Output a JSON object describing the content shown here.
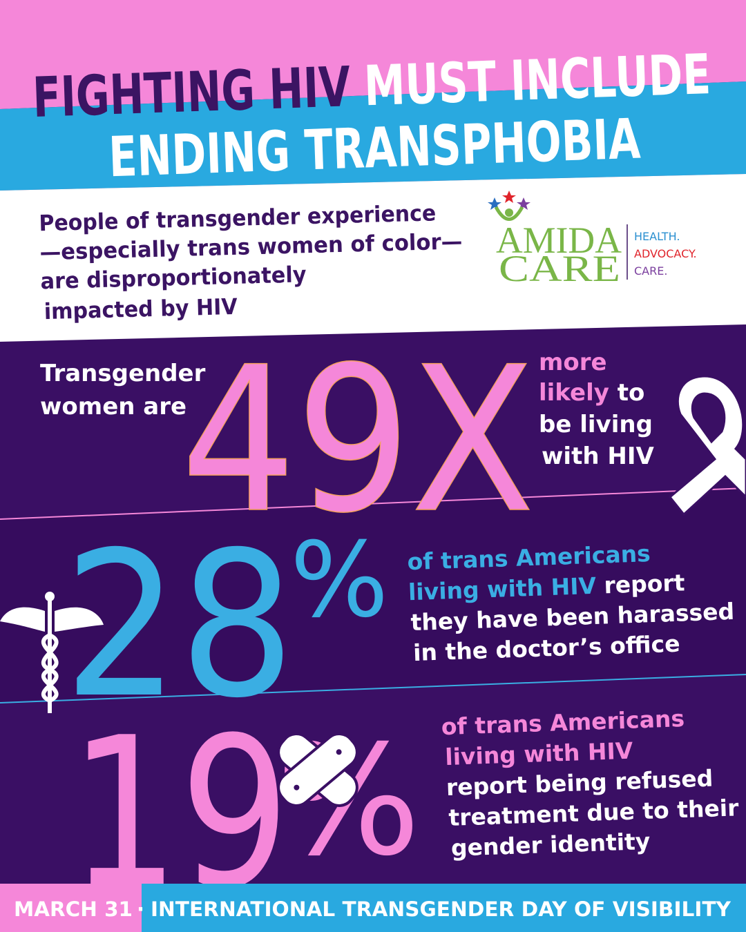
{
  "header": {
    "title_dark": "FIGHTING HIV",
    "title_light": "MUST INCLUDE",
    "title_line2": "ENDING TRANSPHOBIA"
  },
  "intro": {
    "lines": [
      "People of transgender experience",
      "—especially trans women of color—",
      "are disproportionately",
      "impacted by HIV"
    ]
  },
  "logo": {
    "name_line1": "AMIDA",
    "name_line2": "CARE",
    "tags": [
      "HEALTH.",
      "ADVOCACY.",
      "CARE."
    ]
  },
  "stats": [
    {
      "lead": [
        "Transgender",
        "women are"
      ],
      "figure": "49X",
      "text": [
        "more",
        "likely",
        " to",
        "be living",
        "with HIV"
      ]
    },
    {
      "figure": "28",
      "unit": "%",
      "text": [
        "of trans Americans",
        "living with HIV",
        " report",
        "they have been harassed",
        "in the doctor’s office"
      ]
    },
    {
      "figure": "19",
      "unit": "%",
      "text": [
        "of trans Americans",
        "living with HIV",
        "report being refused",
        "treatment due to their",
        "gender identity"
      ]
    }
  ],
  "footer": {
    "date": "MARCH 31",
    "separator": "·",
    "event": "INTERNATIONAL TRANSGENDER DAY OF VISIBILITY"
  }
}
